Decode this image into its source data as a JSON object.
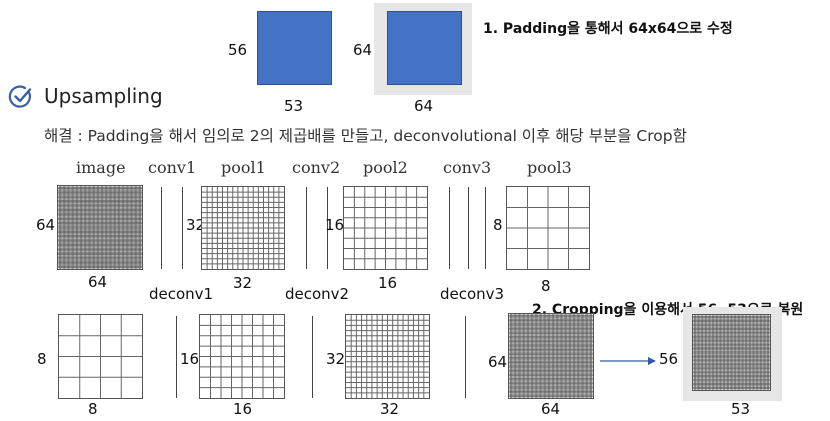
{
  "padding_demo": {
    "original_height": "56",
    "original_width": "53",
    "padded_height": "64",
    "padded_width": "64",
    "note": "1. Padding을 통해서 64x64으로 수정",
    "colors": {
      "square": "#4472c4",
      "padding": "#e6e6e6"
    }
  },
  "section": {
    "title": "Upsampling",
    "icon": "check-circle-icon",
    "subtitle": "해결 : Padding을 해서 임의로 2의 제곱배를 만들고, deconvolutional 이후 해당 부분을 Crop함"
  },
  "top_row": {
    "headers": {
      "image": "image",
      "conv1": "conv1",
      "pool1": "pool1",
      "conv2": "conv2",
      "pool2": "pool2",
      "conv3": "conv3",
      "pool3": "pool3"
    },
    "image": {
      "side": "64",
      "bottom": "64",
      "cells": 64
    },
    "pool1": {
      "side": "32",
      "bottom": "32",
      "cells": 16
    },
    "pool2": {
      "side": "16",
      "bottom": "16",
      "cells": 8
    },
    "pool3": {
      "side": "8",
      "bottom": "8",
      "cells": 4
    }
  },
  "deconv_labels": {
    "deconv1": "deconv1",
    "deconv2": "deconv2",
    "deconv3": "deconv3"
  },
  "bottom_row": {
    "g8": {
      "side": "8",
      "bottom": "8",
      "cells": 4
    },
    "g16": {
      "side": "16",
      "bottom": "16",
      "cells": 8
    },
    "g32": {
      "side": "32",
      "bottom": "32",
      "cells": 16
    },
    "g64": {
      "side": "64",
      "bottom": "64",
      "cells": 64
    },
    "cropped": {
      "side": "56",
      "bottom": "53",
      "cells": 56
    }
  },
  "crop_note": "2. Cropping을 이용해서 56, 53으로 복원"
}
